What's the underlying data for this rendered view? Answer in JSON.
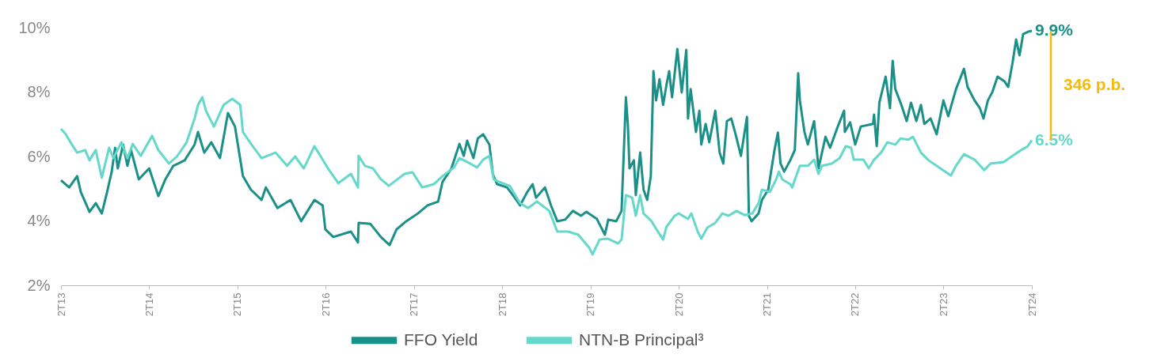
{
  "chart_data": {
    "type": "line",
    "xlim": [
      "2013-04-01",
      "2024-04-01"
    ],
    "xticks": [
      {
        "value": "2013-04-01",
        "label": "2T13"
      },
      {
        "value": "2014-04-01",
        "label": "2T14"
      },
      {
        "value": "2015-04-01",
        "label": "2T15"
      },
      {
        "value": "2016-04-01",
        "label": "2T16"
      },
      {
        "value": "2017-04-01",
        "label": "2T17"
      },
      {
        "value": "2018-04-01",
        "label": "2T18"
      },
      {
        "value": "2019-04-01",
        "label": "2T19"
      },
      {
        "value": "2020-04-01",
        "label": "2T20"
      },
      {
        "value": "2021-04-01",
        "label": "2T21"
      },
      {
        "value": "2022-04-01",
        "label": "2T22"
      },
      {
        "value": "2023-04-01",
        "label": "2T23"
      },
      {
        "value": "2024-04-01",
        "label": "2T24"
      }
    ],
    "ylim": [
      2,
      10
    ],
    "yticks": [
      {
        "value": 2,
        "label": "2%"
      },
      {
        "value": 4,
        "label": "4%"
      },
      {
        "value": 6,
        "label": "6%"
      },
      {
        "value": 8,
        "label": "8%"
      },
      {
        "value": 10,
        "label": "10%"
      }
    ],
    "legend": "bottom",
    "series": [
      {
        "name": "FFO Yield",
        "color": "#1b9088",
        "x": [
          "2013-04-01",
          "2013-05-05",
          "2013-06-07",
          "2013-06-22",
          "2013-07-28",
          "2013-08-23",
          "2013-09-17",
          "2013-10-09",
          "2013-10-28",
          "2013-11-11",
          "2013-11-22",
          "2013-12-14",
          "2014-01-01",
          "2014-01-16",
          "2014-02-17",
          "2014-04-01",
          "2014-05-09",
          "2014-06-07",
          "2014-07-10",
          "2014-08-26",
          "2014-10-06",
          "2014-10-20",
          "2014-11-15",
          "2014-12-14",
          "2015-01-19",
          "2015-02-21",
          "2015-03-22",
          "2015-04-24",
          "2015-05-27",
          "2015-07-10",
          "2015-07-28",
          "2015-09-14",
          "2015-11-07",
          "2015-12-21",
          "2016-02-14",
          "2016-03-19",
          "2016-03-30",
          "2016-05-02",
          "2016-07-14",
          "2016-08-12",
          "2016-08-15",
          "2016-10-02",
          "2016-11-15",
          "2016-12-21",
          "2017-01-19",
          "2017-02-28",
          "2017-04-17",
          "2017-05-27",
          "2017-07-10",
          "2017-07-28",
          "2017-09-03",
          "2017-10-06",
          "2017-10-24",
          "2017-11-07",
          "2017-12-03",
          "2017-12-21",
          "2018-01-12",
          "2018-02-07",
          "2018-02-21",
          "2018-03-11",
          "2018-04-21",
          "2018-05-23",
          "2018-06-14",
          "2018-07-14",
          "2018-08-05",
          "2018-08-19",
          "2018-09-25",
          "2018-10-20",
          "2018-11-15",
          "2018-12-18",
          "2019-01-19",
          "2019-02-21",
          "2019-03-15",
          "2019-04-28",
          "2019-05-31",
          "2019-06-14",
          "2019-07-17",
          "2019-08-08",
          "2019-08-26",
          "2019-09-03",
          "2019-09-10",
          "2019-09-28",
          "2019-10-06",
          "2019-10-24",
          "2019-11-07",
          "2019-11-22",
          "2019-12-07",
          "2019-12-18",
          "2019-12-29",
          "2020-01-12",
          "2020-01-27",
          "2020-02-10",
          "2020-02-21",
          "2020-03-04",
          "2020-03-26",
          "2020-04-13",
          "2020-05-02",
          "2020-05-09",
          "2020-05-20",
          "2020-06-11",
          "2020-06-25",
          "2020-07-03",
          "2020-07-21",
          "2020-08-05",
          "2020-08-30",
          "2020-09-17",
          "2020-10-02",
          "2020-10-17",
          "2020-11-04",
          "2020-11-22",
          "2020-12-14",
          "2021-01-08",
          "2021-01-16",
          "2021-01-27",
          "2021-02-25",
          "2021-03-11",
          "2021-04-06",
          "2021-05-02",
          "2021-05-16",
          "2021-05-27",
          "2021-06-11",
          "2021-07-06",
          "2021-07-25",
          "2021-08-08",
          "2021-08-15",
          "2021-09-03",
          "2021-09-17",
          "2021-10-13",
          "2021-10-31",
          "2021-11-29",
          "2021-12-18",
          "2022-01-19",
          "2022-02-14",
          "2022-02-17",
          "2022-03-11",
          "2022-04-01",
          "2022-04-24",
          "2022-06-14",
          "2022-06-18",
          "2022-06-29",
          "2022-07-10",
          "2022-08-05",
          "2022-08-23",
          "2022-09-03",
          "2022-09-14",
          "2022-10-09",
          "2022-10-31",
          "2022-11-18",
          "2022-12-10",
          "2022-12-29",
          "2023-01-12",
          "2023-02-07",
          "2023-03-04",
          "2023-04-01",
          "2023-04-21",
          "2023-05-23",
          "2023-06-25",
          "2023-07-10",
          "2023-08-08",
          "2023-08-30",
          "2023-09-14",
          "2023-10-02",
          "2023-10-20",
          "2023-11-11",
          "2023-12-10",
          "2023-12-25",
          "2024-01-12",
          "2024-01-27",
          "2024-02-10",
          "2024-02-25",
          "2024-03-19",
          "2024-04-01"
        ],
        "values": [
          5.26,
          5.04,
          5.39,
          4.9,
          4.28,
          4.55,
          4.23,
          4.9,
          5.53,
          6.27,
          5.63,
          6.37,
          5.71,
          6.2,
          5.29,
          5.63,
          4.77,
          5.29,
          5.71,
          5.88,
          6.37,
          6.76,
          6.12,
          6.44,
          5.95,
          7.35,
          6.93,
          5.39,
          4.97,
          4.65,
          5.04,
          4.4,
          4.65,
          3.99,
          4.65,
          4.48,
          3.74,
          3.5,
          3.67,
          3.33,
          3.94,
          3.91,
          3.5,
          3.25,
          3.74,
          3.99,
          4.23,
          4.48,
          4.6,
          5.21,
          5.63,
          6.39,
          6.02,
          6.49,
          5.95,
          6.56,
          6.69,
          6.37,
          5.46,
          5.14,
          5.04,
          4.72,
          4.48,
          4.9,
          5.14,
          4.72,
          5.04,
          4.48,
          3.99,
          4.04,
          4.31,
          4.16,
          4.28,
          4.06,
          3.57,
          4.04,
          3.99,
          4.31,
          7.84,
          7.01,
          5.63,
          5.88,
          4.8,
          6.12,
          4.97,
          4.65,
          5.39,
          8.65,
          7.74,
          8.4,
          7.6,
          8.23,
          8.65,
          7.84,
          9.34,
          7.99,
          9.31,
          7.18,
          8.09,
          6.76,
          7.42,
          6.37,
          7.01,
          6.44,
          7.42,
          6.12,
          5.78,
          7.1,
          7.18,
          6.69,
          6.02,
          7.23,
          4.16,
          3.99,
          4.23,
          4.65,
          4.97,
          6.2,
          6.74,
          5.78,
          5.53,
          5.88,
          6.2,
          8.58,
          7.74,
          6.76,
          6.37,
          7.1,
          5.63,
          6.61,
          6.27,
          6.93,
          7.42,
          6.76,
          7.06,
          6.37,
          6.93,
          7.01,
          7.3,
          6.32,
          7.67,
          8.48,
          7.5,
          8.97,
          8.09,
          7.6,
          7.1,
          7.67,
          7.1,
          7.6,
          7.01,
          7.18,
          6.69,
          7.74,
          7.25,
          8.09,
          8.72,
          8.16,
          7.74,
          7.5,
          7.18,
          7.74,
          7.99,
          8.48,
          8.33,
          8.16,
          8.9,
          9.63,
          9.14,
          9.8,
          9.88,
          9.9
        ]
      },
      {
        "name": "NTN-B Principal³",
        "color": "#64d8ca",
        "x": [
          "2013-04-01",
          "2013-04-21",
          "2013-05-16",
          "2013-06-07",
          "2013-07-10",
          "2013-07-28",
          "2013-08-23",
          "2013-09-17",
          "2013-10-17",
          "2013-11-04",
          "2013-12-07",
          "2014-01-01",
          "2014-01-23",
          "2014-02-25",
          "2014-04-13",
          "2014-05-09",
          "2014-06-22",
          "2014-07-25",
          "2014-09-03",
          "2014-10-06",
          "2014-10-20",
          "2014-11-07",
          "2014-11-22",
          "2014-12-25",
          "2015-02-03",
          "2015-03-11",
          "2015-04-13",
          "2015-04-24",
          "2015-05-23",
          "2015-07-10",
          "2015-09-06",
          "2015-10-24",
          "2015-11-26",
          "2016-01-01",
          "2016-02-14",
          "2016-04-10",
          "2016-05-23",
          "2016-07-14",
          "2016-08-12",
          "2016-08-15",
          "2016-09-10",
          "2016-10-13",
          "2016-11-15",
          "2016-12-18",
          "2017-02-21",
          "2017-03-26",
          "2017-05-05",
          "2017-06-22",
          "2017-07-28",
          "2017-09-14",
          "2017-10-06",
          "2017-11-07",
          "2017-12-18",
          "2018-01-12",
          "2018-02-07",
          "2018-02-25",
          "2018-03-19",
          "2018-05-02",
          "2018-06-14",
          "2018-07-17",
          "2018-08-23",
          "2018-10-13",
          "2018-11-15",
          "2018-12-29",
          "2019-02-10",
          "2019-03-26",
          "2019-04-10",
          "2019-05-09",
          "2019-06-11",
          "2019-07-25",
          "2019-08-08",
          "2019-08-26",
          "2019-09-21",
          "2019-10-06",
          "2019-10-24",
          "2019-11-07",
          "2019-12-10",
          "2020-01-05",
          "2020-01-27",
          "2020-02-10",
          "2020-03-15",
          "2020-04-01",
          "2020-05-09",
          "2020-05-23",
          "2020-06-18",
          "2020-07-03",
          "2020-07-28",
          "2020-08-30",
          "2020-09-28",
          "2020-10-24",
          "2020-11-26",
          "2020-12-29",
          "2021-01-30",
          "2021-02-25",
          "2021-03-11",
          "2021-04-13",
          "2021-05-09",
          "2021-05-20",
          "2021-06-03",
          "2021-07-06",
          "2021-07-14",
          "2021-08-15",
          "2021-09-17",
          "2021-10-13",
          "2021-10-31",
          "2021-11-15",
          "2021-12-25",
          "2022-01-27",
          "2022-02-21",
          "2022-03-15",
          "2022-03-26",
          "2022-05-05",
          "2022-05-27",
          "2022-06-18",
          "2022-07-17",
          "2022-08-12",
          "2022-09-14",
          "2022-10-06",
          "2022-11-07",
          "2022-11-26",
          "2022-12-29",
          "2023-01-30",
          "2023-03-19",
          "2023-05-02",
          "2023-05-23",
          "2023-06-25",
          "2023-08-08",
          "2023-09-17",
          "2023-10-13",
          "2023-12-07",
          "2024-01-12",
          "2024-02-17",
          "2024-03-15",
          "2024-04-01"
        ],
        "values": [
          6.86,
          6.69,
          6.37,
          6.12,
          6.2,
          5.88,
          6.2,
          5.34,
          6.27,
          5.95,
          6.44,
          5.95,
          6.39,
          6.02,
          6.64,
          6.2,
          5.78,
          6.0,
          6.44,
          7.18,
          7.6,
          7.84,
          7.42,
          6.93,
          7.6,
          7.79,
          7.6,
          6.76,
          6.44,
          5.95,
          6.12,
          5.71,
          6.0,
          5.63,
          6.32,
          5.63,
          5.17,
          5.46,
          5.04,
          6.02,
          5.71,
          5.63,
          5.29,
          5.09,
          5.46,
          5.51,
          5.04,
          5.14,
          5.39,
          5.66,
          5.95,
          5.83,
          5.66,
          5.9,
          6.02,
          5.29,
          5.21,
          5.09,
          4.55,
          4.4,
          4.6,
          4.31,
          3.67,
          3.67,
          3.57,
          3.18,
          2.96,
          3.42,
          3.45,
          3.3,
          3.42,
          4.8,
          4.72,
          4.16,
          4.8,
          4.23,
          3.99,
          3.67,
          3.42,
          3.82,
          4.16,
          4.23,
          4.06,
          4.23,
          3.67,
          3.45,
          3.79,
          3.94,
          4.23,
          4.16,
          4.31,
          4.18,
          4.23,
          4.55,
          4.97,
          4.9,
          5.29,
          5.53,
          5.29,
          5.14,
          5.04,
          5.71,
          5.71,
          5.9,
          5.46,
          5.71,
          5.78,
          5.95,
          6.32,
          6.27,
          5.9,
          5.9,
          5.63,
          5.9,
          6.12,
          6.44,
          6.37,
          6.56,
          6.52,
          6.61,
          6.12,
          5.88,
          5.63,
          5.41,
          5.71,
          6.07,
          5.9,
          5.58,
          5.78,
          5.83,
          6.02,
          6.2,
          6.32,
          6.5
        ]
      }
    ],
    "annotations": [
      {
        "text": "9.9%",
        "x": "2024-04-01",
        "y": 9.9
      },
      {
        "text": "6.5%",
        "x": "2024-04-01",
        "y": 6.5
      },
      "346 p.b."
    ]
  }
}
